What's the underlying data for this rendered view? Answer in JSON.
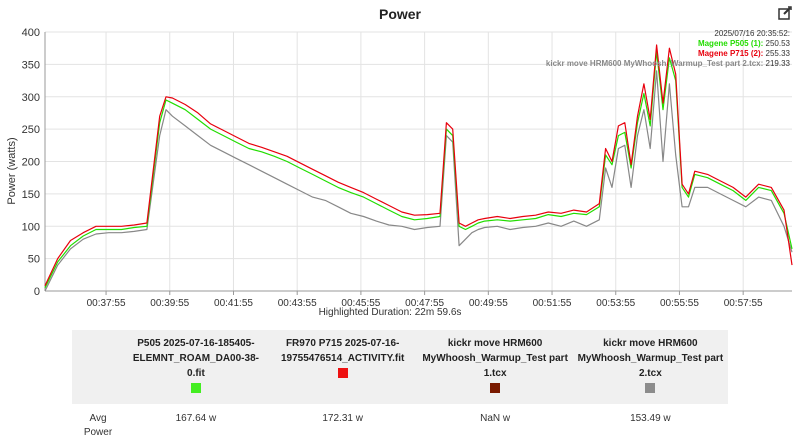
{
  "title": "Power",
  "icons": {
    "edit": "edit-icon"
  },
  "tooltip": {
    "timestamp": "2025/07/16 20:35:52:",
    "rows": [
      {
        "name": "Magene P505 (1):",
        "value": "250.53",
        "color": "#22dd00"
      },
      {
        "name": "Magene P715 (2):",
        "value": "255.33",
        "color": "#e8000d"
      },
      {
        "name": "kickr move HRM600 MyWhoosh_Warmup_Test part 2.tcx:",
        "value": "219.33",
        "color": "#888888"
      }
    ]
  },
  "highlighted_duration": "Highlighted Duration: 22m 59.6s",
  "chart_data": {
    "type": "line",
    "title": "Power",
    "ylabel": "Power (watts)",
    "xlabel": "",
    "ylim": [
      0,
      400
    ],
    "yticks": [
      0,
      50,
      100,
      150,
      200,
      250,
      300,
      350,
      400
    ],
    "xlim_minutes": [
      36.0,
      59.45
    ],
    "xticks": [
      {
        "t": 37.917,
        "label": "00:37:55"
      },
      {
        "t": 39.917,
        "label": "00:39:55"
      },
      {
        "t": 41.917,
        "label": "00:41:55"
      },
      {
        "t": 43.917,
        "label": "00:43:55"
      },
      {
        "t": 45.917,
        "label": "00:45:55"
      },
      {
        "t": 47.917,
        "label": "00:47:55"
      },
      {
        "t": 49.917,
        "label": "00:49:55"
      },
      {
        "t": 51.917,
        "label": "00:51:55"
      },
      {
        "t": 53.917,
        "label": "00:53:55"
      },
      {
        "t": 55.917,
        "label": "00:55:55"
      },
      {
        "t": 57.917,
        "label": "00:57:55"
      }
    ],
    "grid": true,
    "x": [
      36.0,
      36.4,
      36.8,
      37.2,
      37.6,
      38.0,
      38.4,
      38.8,
      39.2,
      39.6,
      39.8,
      40.0,
      40.4,
      40.8,
      41.2,
      41.6,
      42.0,
      42.4,
      42.8,
      43.2,
      43.6,
      44.0,
      44.4,
      44.8,
      45.2,
      45.6,
      46.0,
      46.4,
      46.8,
      47.2,
      47.6,
      48.0,
      48.4,
      48.6,
      48.8,
      49.0,
      49.2,
      49.4,
      49.6,
      49.8,
      50.2,
      50.6,
      51.0,
      51.4,
      51.8,
      52.2,
      52.6,
      53.0,
      53.4,
      53.6,
      53.8,
      54.0,
      54.2,
      54.4,
      54.6,
      54.8,
      55.0,
      55.2,
      55.4,
      55.6,
      55.8,
      56.0,
      56.2,
      56.4,
      56.8,
      57.2,
      57.6,
      58.0,
      58.4,
      58.8,
      59.2,
      59.45
    ],
    "series": [
      {
        "name": "P505 2025-07-16-185405-ELEMNT_ROAM_DA00-38-0.fit",
        "color": "#22dd00",
        "values": [
          5,
          45,
          70,
          85,
          95,
          95,
          95,
          98,
          100,
          260,
          295,
          290,
          280,
          265,
          250,
          240,
          230,
          220,
          215,
          208,
          200,
          190,
          180,
          170,
          160,
          152,
          145,
          135,
          125,
          115,
          110,
          112,
          115,
          250,
          240,
          100,
          95,
          100,
          105,
          108,
          110,
          108,
          110,
          112,
          118,
          115,
          120,
          118,
          130,
          210,
          195,
          240,
          245,
          190,
          260,
          305,
          255,
          370,
          280,
          360,
          325,
          160,
          145,
          180,
          175,
          165,
          155,
          140,
          160,
          155,
          120,
          65
        ]
      },
      {
        "name": "FR970 P715 2025-07-16-19755476514_ACTIVITY.fit",
        "color": "#e8000d",
        "values": [
          8,
          50,
          78,
          90,
          100,
          100,
          100,
          102,
          105,
          270,
          300,
          298,
          288,
          275,
          258,
          248,
          238,
          228,
          222,
          215,
          208,
          198,
          188,
          178,
          168,
          160,
          152,
          142,
          132,
          122,
          117,
          118,
          120,
          260,
          250,
          105,
          100,
          105,
          110,
          112,
          115,
          112,
          115,
          117,
          122,
          120,
          125,
          122,
          135,
          220,
          200,
          255,
          260,
          195,
          270,
          320,
          265,
          380,
          290,
          375,
          335,
          165,
          150,
          185,
          180,
          170,
          160,
          145,
          165,
          160,
          125,
          40
        ]
      },
      {
        "name": "kickr move HRM600 MyWhoosh_Warmup_Test part 2.tcx",
        "color": "#888888",
        "values": [
          0,
          40,
          65,
          80,
          88,
          90,
          90,
          92,
          95,
          240,
          280,
          270,
          255,
          240,
          225,
          215,
          205,
          195,
          185,
          175,
          165,
          155,
          145,
          140,
          130,
          120,
          115,
          108,
          102,
          100,
          95,
          98,
          100,
          240,
          230,
          70,
          80,
          90,
          95,
          98,
          100,
          95,
          98,
          100,
          105,
          100,
          108,
          100,
          110,
          190,
          160,
          220,
          225,
          160,
          240,
          280,
          220,
          340,
          200,
          320,
          210,
          130,
          130,
          160,
          160,
          150,
          140,
          130,
          145,
          140,
          100,
          60
        ]
      }
    ]
  },
  "table": {
    "row_label": "Avg Power",
    "columns": [
      {
        "header": "P505 2025-07-16-185405-ELEMNT_ROAM_DA00-38-0.fit",
        "color": "#44ee22",
        "value": "167.64 w"
      },
      {
        "header": "FR970 P715 2025-07-16-19755476514_ACTIVITY.fit",
        "color": "#ee1111",
        "value": "172.31 w"
      },
      {
        "header": "kickr move HRM600 MyWhoosh_Warmup_Test part 1.tcx",
        "color": "#7a1a00",
        "value": "NaN w"
      },
      {
        "header": "kickr move HRM600 MyWhoosh_Warmup_Test part 2.tcx",
        "color": "#8c8c8c",
        "value": "153.49 w"
      }
    ]
  }
}
